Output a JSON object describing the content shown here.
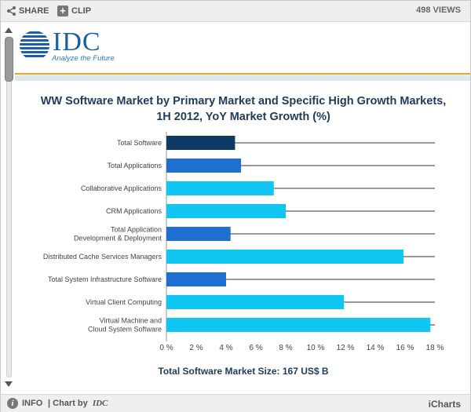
{
  "toolbar": {
    "share_label": "SHARE",
    "clip_label": "CLIP",
    "views_label": "498 VIEWS"
  },
  "logo": {
    "name": "IDC",
    "tagline": "Analyze the Future"
  },
  "colors": {
    "dark_navy": "#0d3b66",
    "medium_blue": "#1f6fd0",
    "cyan": "#11c6f3",
    "header_accent": "#f3a21b"
  },
  "chart_data": {
    "type": "bar",
    "orientation": "horizontal",
    "title": "WW Software Market by Primary Market and Specific High Growth Markets, 1H 2012, YoY Market Growth (%)",
    "xlabel": "",
    "ylabel": "",
    "xlim": [
      0,
      18
    ],
    "xticks": [
      "0 %",
      "2 %",
      "4 %",
      "6 %",
      "8 %",
      "10 %",
      "12 %",
      "14 %",
      "16 %",
      "18 %"
    ],
    "grid": true,
    "categories": [
      "Total Software",
      "Total Applications",
      "Collaborative Applications",
      "CRM Applications",
      "Total Application Development & Deployment",
      "Distributed Cache Services Managers",
      "Total System Infrastructure Software",
      "Virtual Client Computing",
      "Virtual Machine and Cloud System Software"
    ],
    "values": [
      4.6,
      5.0,
      7.2,
      8.0,
      4.3,
      15.9,
      4.0,
      11.9,
      17.7
    ],
    "bar_colors": [
      "#0d3b66",
      "#1f6fd0",
      "#11c6f3",
      "#11c6f3",
      "#1f6fd0",
      "#11c6f3",
      "#1f6fd0",
      "#11c6f3",
      "#11c6f3"
    ]
  },
  "caption": "Total Software Market Size: 167 US$ B",
  "footer": {
    "info_label": "INFO",
    "chart_by_label": "| Chart by",
    "chart_by_brand": "IDC",
    "icharts_label": "iCharts"
  }
}
